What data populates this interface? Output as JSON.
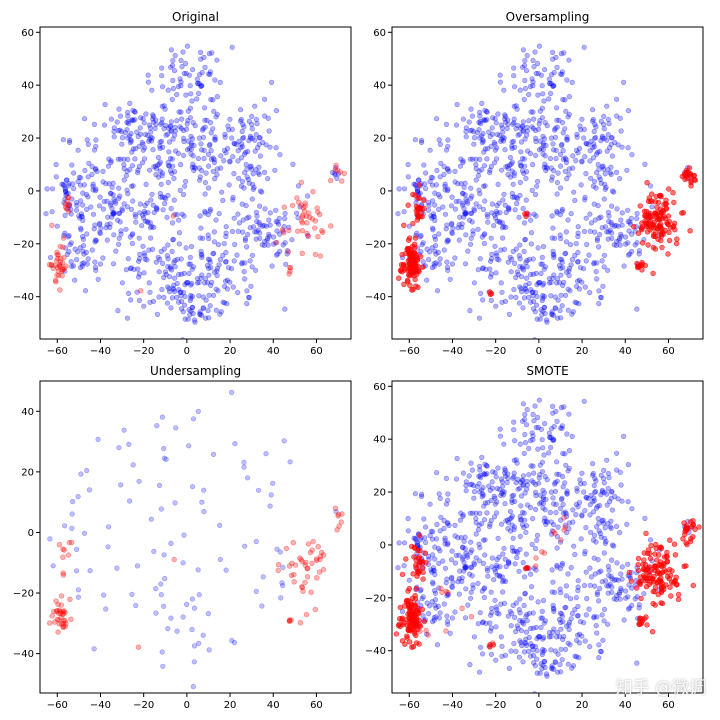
{
  "watermark": "知乎 @微调",
  "colors": {
    "majority": "#0000ff",
    "minority": "#ff0000"
  },
  "chart_data": [
    {
      "type": "scatter",
      "title": "Original",
      "xlim": [
        -68,
        76
      ],
      "ylim": [
        -56,
        62
      ],
      "xticks": [
        -60,
        -40,
        -20,
        0,
        20,
        40,
        60
      ],
      "yticks": [
        -40,
        -20,
        0,
        20,
        40,
        60
      ],
      "majority": {
        "density": 1.0,
        "alpha": 0.3
      },
      "minority": {
        "density": 0.9,
        "alpha": 0.3,
        "clusters": [
          {
            "x": -59,
            "y": -28,
            "n": 38,
            "sx": 2.2,
            "sy": 4.0
          },
          {
            "x": -56,
            "y": -6,
            "n": 10,
            "sx": 2.0,
            "sy": 3.0
          },
          {
            "x": 55,
            "y": -12,
            "n": 45,
            "sx": 5.0,
            "sy": 6.0
          },
          {
            "x": 70,
            "y": 5,
            "n": 8,
            "sx": 1.5,
            "sy": 2.0
          },
          {
            "x": 47,
            "y": -29,
            "n": 4,
            "sx": 1.0,
            "sy": 1.0
          },
          {
            "x": -22,
            "y": -38,
            "n": 1,
            "sx": 0.5,
            "sy": 0.5
          },
          {
            "x": -6,
            "y": -9,
            "n": 1,
            "sx": 0.5,
            "sy": 0.5
          }
        ]
      },
      "seed": 11
    },
    {
      "type": "scatter",
      "title": "Oversampling",
      "xlim": [
        -68,
        76
      ],
      "ylim": [
        -56,
        62
      ],
      "xticks": [
        -60,
        -40,
        -20,
        0,
        20,
        40,
        60
      ],
      "yticks": [
        -40,
        -20,
        0,
        20,
        40,
        60
      ],
      "majority": {
        "density": 1.0,
        "alpha": 0.3
      },
      "minority": {
        "density": 2.6,
        "alpha": 0.55,
        "clusters": [
          {
            "x": -59,
            "y": -28,
            "n": 38,
            "sx": 2.2,
            "sy": 4.0
          },
          {
            "x": -56,
            "y": -6,
            "n": 10,
            "sx": 2.0,
            "sy": 3.0
          },
          {
            "x": 55,
            "y": -12,
            "n": 45,
            "sx": 5.0,
            "sy": 6.0
          },
          {
            "x": 70,
            "y": 5,
            "n": 8,
            "sx": 1.5,
            "sy": 2.0
          },
          {
            "x": 47,
            "y": -29,
            "n": 4,
            "sx": 1.0,
            "sy": 1.0
          },
          {
            "x": -22,
            "y": -38,
            "n": 1,
            "sx": 0.5,
            "sy": 0.5
          },
          {
            "x": -6,
            "y": -9,
            "n": 1,
            "sx": 0.5,
            "sy": 0.5
          }
        ]
      },
      "seed": 11
    },
    {
      "type": "scatter",
      "title": "Undersampling",
      "xlim": [
        -68,
        76
      ],
      "ylim": [
        -53,
        50
      ],
      "xticks": [
        -60,
        -40,
        -20,
        0,
        20,
        40,
        60
      ],
      "yticks": [
        -40,
        -20,
        0,
        20,
        40
      ],
      "majority": {
        "density": 0.12,
        "alpha": 0.25
      },
      "minority": {
        "density": 0.9,
        "alpha": 0.3,
        "clusters": [
          {
            "x": -59,
            "y": -28,
            "n": 38,
            "sx": 2.2,
            "sy": 4.0
          },
          {
            "x": -56,
            "y": -6,
            "n": 10,
            "sx": 2.0,
            "sy": 3.0
          },
          {
            "x": 55,
            "y": -12,
            "n": 45,
            "sx": 5.0,
            "sy": 6.0
          },
          {
            "x": 70,
            "y": 5,
            "n": 8,
            "sx": 1.5,
            "sy": 2.0
          },
          {
            "x": 47,
            "y": -29,
            "n": 4,
            "sx": 1.0,
            "sy": 1.0
          },
          {
            "x": -22,
            "y": -38,
            "n": 1,
            "sx": 0.5,
            "sy": 0.5
          },
          {
            "x": -6,
            "y": -9,
            "n": 1,
            "sx": 0.5,
            "sy": 0.5
          }
        ]
      },
      "seed": 23
    },
    {
      "type": "scatter",
      "title": "SMOTE",
      "xlim": [
        -68,
        76
      ],
      "ylim": [
        -56,
        62
      ],
      "xticks": [
        -60,
        -40,
        -20,
        0,
        20,
        40,
        60
      ],
      "yticks": [
        -40,
        -20,
        0,
        20,
        40,
        60
      ],
      "majority": {
        "density": 1.0,
        "alpha": 0.3
      },
      "minority": {
        "density": 2.8,
        "alpha": 0.55,
        "clusters": [
          {
            "x": -59,
            "y": -28,
            "n": 38,
            "sx": 2.6,
            "sy": 4.5
          },
          {
            "x": -56,
            "y": -6,
            "n": 10,
            "sx": 2.5,
            "sy": 3.5
          },
          {
            "x": 55,
            "y": -12,
            "n": 45,
            "sx": 5.5,
            "sy": 6.5
          },
          {
            "x": 70,
            "y": 5,
            "n": 8,
            "sx": 1.8,
            "sy": 2.2
          },
          {
            "x": 47,
            "y": -29,
            "n": 4,
            "sx": 1.2,
            "sy": 1.2
          },
          {
            "x": -22,
            "y": -38,
            "n": 1,
            "sx": 0.5,
            "sy": 0.5
          },
          {
            "x": -6,
            "y": -9,
            "n": 1,
            "sx": 0.5,
            "sy": 0.5
          }
        ]
      },
      "bridges": [
        {
          "from": [
            -60,
            -30
          ],
          "to": [
            -20,
            -38
          ],
          "n": 8
        },
        {
          "from": [
            -5,
            -10
          ],
          "to": [
            15,
            10
          ],
          "n": 10
        },
        {
          "from": [
            -56,
            -6
          ],
          "to": [
            -25,
            -33
          ],
          "n": 6
        }
      ],
      "seed": 11
    }
  ]
}
